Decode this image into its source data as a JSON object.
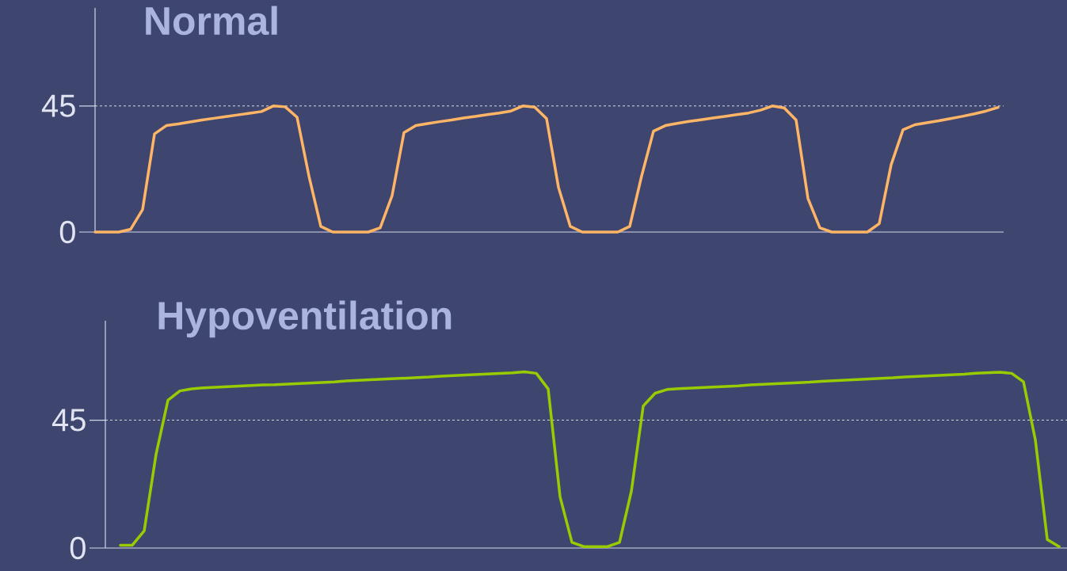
{
  "chart_data": [
    {
      "type": "line",
      "title": "Normal",
      "categories": [
        null,
        null,
        null,
        null,
        null,
        null,
        null,
        null,
        null,
        null,
        null,
        null,
        null,
        null,
        null,
        null,
        null,
        null,
        null,
        null,
        null,
        null,
        null,
        null,
        null,
        null,
        null,
        null,
        null,
        null,
        null,
        null,
        null,
        null,
        null,
        null,
        null,
        null,
        null,
        null,
        null,
        null,
        null,
        null,
        null,
        null,
        null,
        null,
        null,
        null,
        null,
        null,
        null,
        null,
        null,
        null,
        null,
        null,
        null,
        null,
        null,
        null,
        null,
        null,
        null,
        null,
        null,
        null,
        null,
        null,
        null,
        null,
        null,
        null,
        null,
        null,
        null
      ],
      "series": [
        {
          "color": "#ffb566",
          "values": [
            0,
            0,
            0,
            1,
            8,
            35,
            38,
            38.6,
            39.3,
            40,
            40.6,
            41.2,
            41.8,
            42.4,
            43,
            45,
            44.7,
            41,
            20,
            2,
            0,
            0,
            0,
            0,
            1.5,
            13,
            35.5,
            38,
            38.7,
            39.4,
            40,
            40.7,
            41.3,
            41.9,
            42.5,
            43.2,
            45,
            44.6,
            40.5,
            16,
            2,
            0,
            0,
            0,
            0,
            2,
            20,
            36,
            38,
            38.8,
            39.5,
            40.1,
            40.7,
            41.3,
            41.9,
            42.5,
            43.5,
            45,
            44.3,
            40,
            12,
            1.5,
            0,
            0,
            0,
            0,
            3,
            24,
            36.5,
            38.3,
            39,
            39.7,
            40.5,
            41.3,
            42.2,
            43.2,
            44.5
          ]
        }
      ],
      "ylim": [
        0,
        80
      ],
      "yticks": [
        0,
        45
      ],
      "tick_labels": "y",
      "ref_lines": [
        {
          "axis": "y",
          "value": 45,
          "color": "#ffffff",
          "line_style": "dashed"
        }
      ]
    },
    {
      "type": "line",
      "title": "Hypoventilation",
      "categories": [
        null,
        null,
        null,
        null,
        null,
        null,
        null,
        null,
        null,
        null,
        null,
        null,
        null,
        null,
        null,
        null,
        null,
        null,
        null,
        null,
        null,
        null,
        null,
        null,
        null,
        null,
        null,
        null,
        null,
        null,
        null,
        null,
        null,
        null,
        null,
        null,
        null,
        null,
        null,
        null,
        null,
        null,
        null,
        null,
        null,
        null,
        null,
        null,
        null,
        null,
        null,
        null,
        null,
        null,
        null,
        null,
        null,
        null,
        null,
        null,
        null,
        null,
        null,
        null,
        null,
        null,
        null,
        null,
        null,
        null,
        null,
        null,
        null,
        null,
        null,
        null,
        null,
        null,
        null,
        null
      ],
      "series": [
        {
          "color": "#99cc00",
          "values": [
            1,
            1,
            6,
            33,
            52,
            55.3,
            56,
            56.4,
            56.6,
            56.8,
            57,
            57.2,
            57.4,
            57.5,
            57.7,
            57.9,
            58.1,
            58.3,
            58.5,
            58.8,
            59,
            59.2,
            59.4,
            59.6,
            59.8,
            60,
            60.2,
            60.5,
            60.7,
            60.9,
            61.1,
            61.3,
            61.5,
            61.7,
            62,
            61.5,
            56,
            18,
            2,
            0.5,
            0.5,
            0.5,
            2,
            20,
            50,
            54.5,
            55.8,
            56.1,
            56.3,
            56.5,
            56.7,
            56.9,
            57.1,
            57.4,
            57.6,
            57.8,
            58,
            58.2,
            58.4,
            58.7,
            58.9,
            59.1,
            59.3,
            59.5,
            59.7,
            59.9,
            60.2,
            60.4,
            60.6,
            60.8,
            61,
            61.2,
            61.5,
            61.7,
            61.9,
            61.5,
            58.5,
            38,
            3,
            0.5
          ]
        }
      ],
      "ylim": [
        0,
        80
      ],
      "yticks": [
        0,
        45
      ],
      "tick_labels": "y",
      "ref_lines": [
        {
          "axis": "y",
          "value": 45,
          "color": "#ffffff",
          "line_style": "dashed"
        }
      ]
    }
  ]
}
